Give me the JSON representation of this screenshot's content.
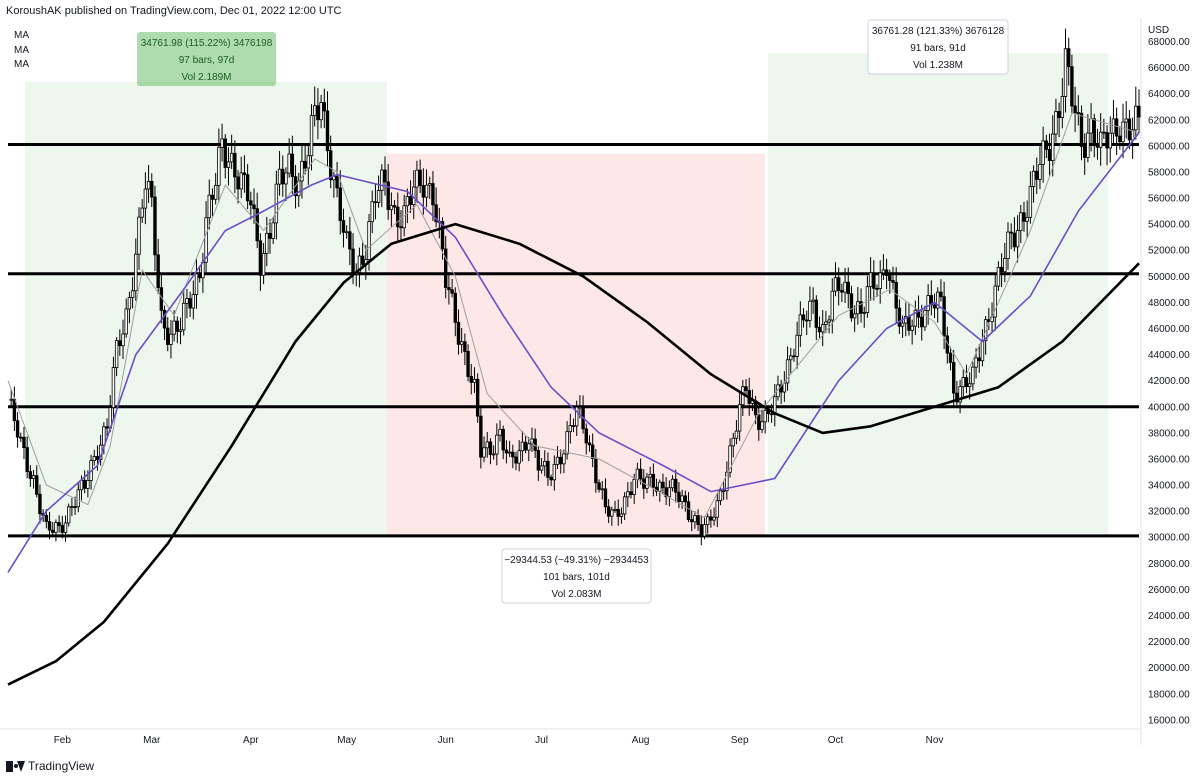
{
  "header": {
    "publisher": "KoroushAK published on TradingView.com, Dec 01, 2022 12:00 UTC"
  },
  "indicators": [
    "MA",
    "MA",
    "MA"
  ],
  "footer": {
    "brand": "TradingView"
  },
  "chart_data": {
    "type": "candlestick",
    "title": "",
    "ylabel": "USD",
    "ylim": [
      15300,
      69800
    ],
    "x_tick_labels": [
      "Feb",
      "Mar",
      "Apr",
      "May",
      "Jun",
      "Jul",
      "Aug",
      "Sep",
      "Oct",
      "Nov"
    ],
    "y_ticks": [
      16000,
      18000,
      20000,
      22000,
      24000,
      26000,
      28000,
      30000,
      32000,
      34000,
      36000,
      38000,
      40000,
      42000,
      44000,
      46000,
      48000,
      50000,
      52000,
      54000,
      56000,
      58000,
      60000,
      62000,
      64000,
      66000,
      68000
    ],
    "y_tick_labels": [
      "16000.00",
      "18000.00",
      "20000.00",
      "22000.00",
      "24000.00",
      "26000.00",
      "28000.00",
      "30000.00",
      "32000.00",
      "34000.00",
      "36000.00",
      "38000.00",
      "40000.00",
      "42000.00",
      "44000.00",
      "46000.00",
      "48000.00",
      "50000.00",
      "52000.00",
      "54000.00",
      "56000.00",
      "58000.00",
      "60000.00",
      "62000.00",
      "64000.00",
      "66000.00",
      "68000.00"
    ],
    "horizontal_levels": [
      60100,
      50200,
      40000,
      30100
    ],
    "ranges": [
      {
        "kind": "up",
        "price_from": 30100,
        "price_to": 64900,
        "lines": [
          "34761.98 (115.22%) 3476198",
          "97 bars, 97d",
          "Vol 2.189M"
        ]
      },
      {
        "kind": "down",
        "price_from": 59400,
        "price_to": 30100,
        "lines": [
          "−29344.53 (−49.31%) −2934453",
          "101 bars, 101d",
          "Vol 2.083M"
        ]
      },
      {
        "kind": "up",
        "price_from": 30300,
        "price_to": 67100,
        "lines": [
          "36761.28 (121.33%) 3676128",
          "91 bars, 91d",
          "Vol 1.238M"
        ]
      }
    ],
    "price_path": [
      {
        "day": 0,
        "price": 40500
      },
      {
        "day": 4,
        "price": 37000
      },
      {
        "day": 8,
        "price": 34500
      },
      {
        "day": 12,
        "price": 30400
      },
      {
        "day": 16,
        "price": 30700
      },
      {
        "day": 20,
        "price": 32500
      },
      {
        "day": 24,
        "price": 33800
      },
      {
        "day": 28,
        "price": 37000
      },
      {
        "day": 31,
        "price": 38500
      },
      {
        "day": 34,
        "price": 44000
      },
      {
        "day": 37,
        "price": 47000
      },
      {
        "day": 40,
        "price": 52000
      },
      {
        "day": 43,
        "price": 57000
      },
      {
        "day": 45,
        "price": 55000
      },
      {
        "day": 48,
        "price": 47000
      },
      {
        "day": 51,
        "price": 45500
      },
      {
        "day": 54,
        "price": 46000
      },
      {
        "day": 57,
        "price": 48500
      },
      {
        "day": 60,
        "price": 50500
      },
      {
        "day": 62,
        "price": 54000
      },
      {
        "day": 65,
        "price": 57000
      },
      {
        "day": 67,
        "price": 60200
      },
      {
        "day": 70,
        "price": 59000
      },
      {
        "day": 73,
        "price": 57000
      },
      {
        "day": 76,
        "price": 55500
      },
      {
        "day": 79,
        "price": 51500
      },
      {
        "day": 82,
        "price": 53500
      },
      {
        "day": 85,
        "price": 57000
      },
      {
        "day": 88,
        "price": 58500
      },
      {
        "day": 91,
        "price": 57500
      },
      {
        "day": 94,
        "price": 59500
      },
      {
        "day": 96,
        "price": 62000
      },
      {
        "day": 98,
        "price": 63500
      },
      {
        "day": 100,
        "price": 60500
      },
      {
        "day": 103,
        "price": 56000
      },
      {
        "day": 106,
        "price": 52000
      },
      {
        "day": 109,
        "price": 50500
      },
      {
        "day": 112,
        "price": 52500
      },
      {
        "day": 115,
        "price": 56000
      },
      {
        "day": 118,
        "price": 57000
      },
      {
        "day": 121,
        "price": 55000
      },
      {
        "day": 124,
        "price": 54500
      },
      {
        "day": 127,
        "price": 56500
      },
      {
        "day": 130,
        "price": 57500
      },
      {
        "day": 133,
        "price": 56500
      },
      {
        "day": 135,
        "price": 53000
      },
      {
        "day": 137,
        "price": 49500
      },
      {
        "day": 140,
        "price": 47000
      },
      {
        "day": 143,
        "price": 44000
      },
      {
        "day": 146,
        "price": 41000
      },
      {
        "day": 148,
        "price": 36500
      },
      {
        "day": 151,
        "price": 37000
      },
      {
        "day": 154,
        "price": 38000
      },
      {
        "day": 157,
        "price": 35500
      },
      {
        "day": 160,
        "price": 36500
      },
      {
        "day": 163,
        "price": 38000
      },
      {
        "day": 166,
        "price": 35500
      },
      {
        "day": 169,
        "price": 34500
      },
      {
        "day": 172,
        "price": 36000
      },
      {
        "day": 175,
        "price": 37500
      },
      {
        "day": 178,
        "price": 39500
      },
      {
        "day": 181,
        "price": 38000
      },
      {
        "day": 184,
        "price": 35000
      },
      {
        "day": 187,
        "price": 32000
      },
      {
        "day": 190,
        "price": 31500
      },
      {
        "day": 193,
        "price": 33000
      },
      {
        "day": 196,
        "price": 34500
      },
      {
        "day": 199,
        "price": 34000
      },
      {
        "day": 202,
        "price": 34500
      },
      {
        "day": 205,
        "price": 33800
      },
      {
        "day": 208,
        "price": 33500
      },
      {
        "day": 211,
        "price": 32800
      },
      {
        "day": 214,
        "price": 31800
      },
      {
        "day": 217,
        "price": 30500
      },
      {
        "day": 219,
        "price": 30700
      },
      {
        "day": 222,
        "price": 32500
      },
      {
        "day": 225,
        "price": 35500
      },
      {
        "day": 228,
        "price": 38500
      },
      {
        "day": 231,
        "price": 41500
      },
      {
        "day": 234,
        "price": 39500
      },
      {
        "day": 237,
        "price": 39000
      },
      {
        "day": 240,
        "price": 40000
      },
      {
        "day": 243,
        "price": 42500
      },
      {
        "day": 246,
        "price": 45000
      },
      {
        "day": 249,
        "price": 46500
      },
      {
        "day": 252,
        "price": 47500
      },
      {
        "day": 255,
        "price": 46000
      },
      {
        "day": 258,
        "price": 48500
      },
      {
        "day": 261,
        "price": 49000
      },
      {
        "day": 264,
        "price": 48000
      },
      {
        "day": 267,
        "price": 47500
      },
      {
        "day": 270,
        "price": 49000
      },
      {
        "day": 273,
        "price": 49500
      },
      {
        "day": 275,
        "price": 51500
      },
      {
        "day": 277,
        "price": 49000
      },
      {
        "day": 280,
        "price": 45500
      },
      {
        "day": 283,
        "price": 46500
      },
      {
        "day": 286,
        "price": 47500
      },
      {
        "day": 289,
        "price": 48000
      },
      {
        "day": 292,
        "price": 47500
      },
      {
        "day": 294,
        "price": 44500
      },
      {
        "day": 296,
        "price": 41500
      },
      {
        "day": 299,
        "price": 41500
      },
      {
        "day": 302,
        "price": 42000
      },
      {
        "day": 305,
        "price": 45500
      },
      {
        "day": 308,
        "price": 48000
      },
      {
        "day": 311,
        "price": 50500
      },
      {
        "day": 314,
        "price": 53000
      },
      {
        "day": 317,
        "price": 54500
      },
      {
        "day": 320,
        "price": 56000
      },
      {
        "day": 323,
        "price": 58500
      },
      {
        "day": 326,
        "price": 60500
      },
      {
        "day": 329,
        "price": 63000
      },
      {
        "day": 331,
        "price": 66000
      },
      {
        "day": 333,
        "price": 63500
      },
      {
        "day": 336,
        "price": 60500
      },
      {
        "day": 339,
        "price": 61500
      },
      {
        "day": 342,
        "price": 59500
      },
      {
        "day": 345,
        "price": 61000
      },
      {
        "day": 348,
        "price": 62000
      },
      {
        "day": 351,
        "price": 61000
      },
      {
        "day": 354,
        "price": 61500
      }
    ],
    "moving_averages": [
      {
        "color": "#9e9e9e",
        "values": [
          {
            "day": 0,
            "price": 42000
          },
          {
            "day": 12,
            "price": 34000
          },
          {
            "day": 25,
            "price": 32500
          },
          {
            "day": 32,
            "price": 37000
          },
          {
            "day": 42,
            "price": 50500
          },
          {
            "day": 52,
            "price": 47000
          },
          {
            "day": 68,
            "price": 57000
          },
          {
            "day": 80,
            "price": 53500
          },
          {
            "day": 96,
            "price": 59000
          },
          {
            "day": 103,
            "price": 58000
          },
          {
            "day": 112,
            "price": 52000
          },
          {
            "day": 128,
            "price": 55500
          },
          {
            "day": 140,
            "price": 50000
          },
          {
            "day": 150,
            "price": 41000
          },
          {
            "day": 165,
            "price": 37000
          },
          {
            "day": 185,
            "price": 36000
          },
          {
            "day": 200,
            "price": 34000
          },
          {
            "day": 218,
            "price": 31500
          },
          {
            "day": 235,
            "price": 39500
          },
          {
            "day": 260,
            "price": 47000
          },
          {
            "day": 276,
            "price": 49000
          },
          {
            "day": 290,
            "price": 46500
          },
          {
            "day": 300,
            "price": 42500
          },
          {
            "day": 320,
            "price": 53500
          },
          {
            "day": 333,
            "price": 62500
          },
          {
            "day": 354,
            "price": 61000
          }
        ]
      },
      {
        "color": "#6a4fc8",
        "values": [
          {
            "day": 0,
            "price": 27300
          },
          {
            "day": 12,
            "price": 32000
          },
          {
            "day": 28,
            "price": 35500
          },
          {
            "day": 40,
            "price": 44000
          },
          {
            "day": 55,
            "price": 49000
          },
          {
            "day": 68,
            "price": 53500
          },
          {
            "day": 80,
            "price": 55000
          },
          {
            "day": 95,
            "price": 57000
          },
          {
            "day": 103,
            "price": 57800
          },
          {
            "day": 125,
            "price": 56500
          },
          {
            "day": 140,
            "price": 53000
          },
          {
            "day": 155,
            "price": 47000
          },
          {
            "day": 170,
            "price": 41500
          },
          {
            "day": 185,
            "price": 38000
          },
          {
            "day": 205,
            "price": 35500
          },
          {
            "day": 220,
            "price": 33500
          },
          {
            "day": 240,
            "price": 34500
          },
          {
            "day": 260,
            "price": 42000
          },
          {
            "day": 275,
            "price": 46000
          },
          {
            "day": 290,
            "price": 48000
          },
          {
            "day": 305,
            "price": 45000
          },
          {
            "day": 320,
            "price": 48500
          },
          {
            "day": 335,
            "price": 55000
          },
          {
            "day": 354,
            "price": 61000
          }
        ]
      },
      {
        "color": "#000000",
        "values": [
          {
            "day": 0,
            "price": 18700
          },
          {
            "day": 15,
            "price": 20500
          },
          {
            "day": 30,
            "price": 23500
          },
          {
            "day": 50,
            "price": 29500
          },
          {
            "day": 70,
            "price": 37000
          },
          {
            "day": 90,
            "price": 45000
          },
          {
            "day": 105,
            "price": 49500
          },
          {
            "day": 120,
            "price": 52500
          },
          {
            "day": 140,
            "price": 54000
          },
          {
            "day": 160,
            "price": 52500
          },
          {
            "day": 180,
            "price": 50000
          },
          {
            "day": 200,
            "price": 46500
          },
          {
            "day": 220,
            "price": 42500
          },
          {
            "day": 240,
            "price": 39500
          },
          {
            "day": 255,
            "price": 38000
          },
          {
            "day": 270,
            "price": 38500
          },
          {
            "day": 290,
            "price": 40000
          },
          {
            "day": 310,
            "price": 41500
          },
          {
            "day": 330,
            "price": 45000
          },
          {
            "day": 354,
            "price": 51000
          }
        ]
      }
    ]
  }
}
